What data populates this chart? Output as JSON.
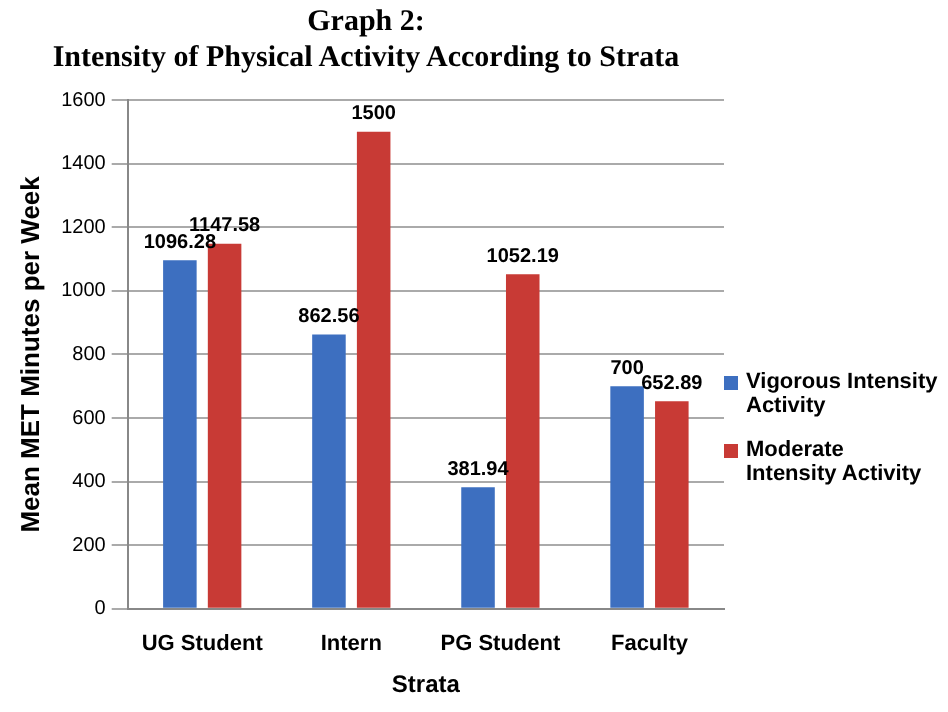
{
  "chart_data": {
    "type": "bar",
    "title": "Graph 2:",
    "subtitle": "Intensity of Physical Activity According to Strata",
    "xlabel": "Strata",
    "ylabel": "Mean MET Minutes per Week",
    "categories": [
      "UG Student",
      "Intern",
      "PG Student",
      "Faculty"
    ],
    "series": [
      {
        "name": "Vigorous Intensity Activity",
        "color": "#3d6fc0",
        "values": [
          1096.28,
          862.56,
          381.94,
          700
        ]
      },
      {
        "name": "Moderate Intensity Activity",
        "color": "#c83a35",
        "values": [
          1147.58,
          1500,
          1052.19,
          652.89
        ]
      }
    ],
    "ylim": [
      0,
      1600
    ],
    "yticks": [
      0,
      200,
      400,
      600,
      800,
      1000,
      1200,
      1400,
      1600
    ],
    "grid": "y",
    "legend": "right",
    "data_labels": true
  }
}
